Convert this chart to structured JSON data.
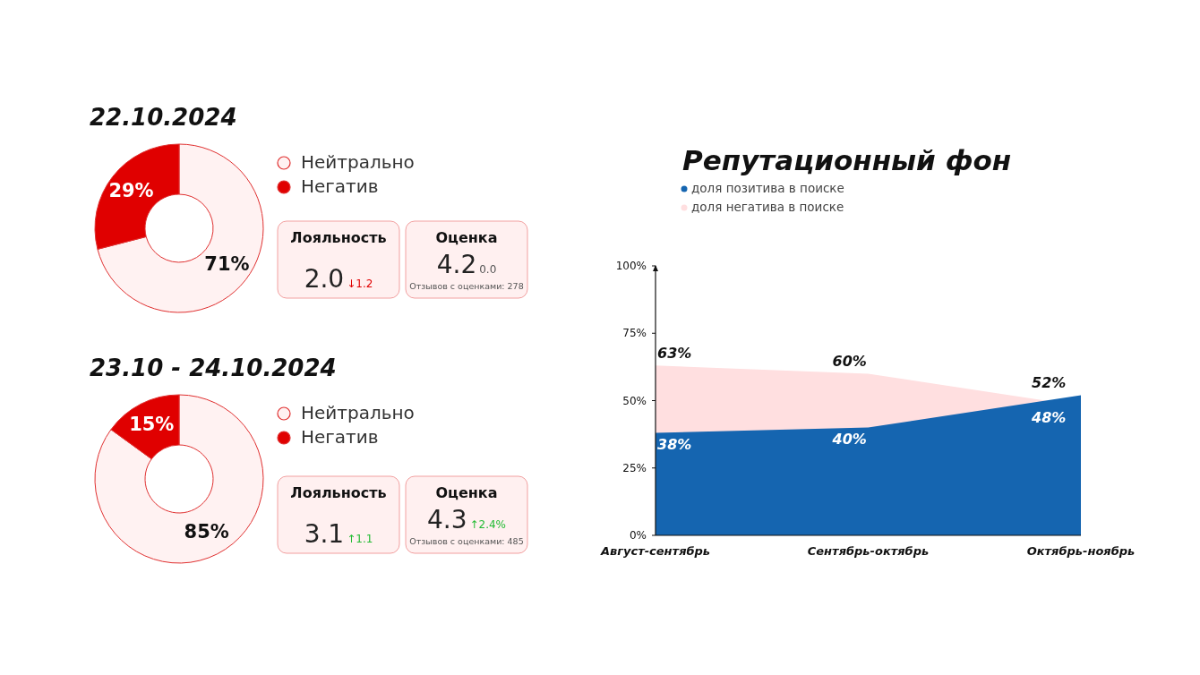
{
  "chart_data": [
    {
      "type": "donut",
      "title": "22.10.2024",
      "categories": [
        "Нейтрально",
        "Негатив"
      ],
      "values": [
        71,
        29
      ],
      "colors": [
        "#fff2f2",
        "#e00000"
      ],
      "value_labels": [
        "71%",
        "29%"
      ],
      "legend": "right"
    },
    {
      "type": "other",
      "title": "Лояльность",
      "annotations": [
        "2.0",
        "↓1.2"
      ],
      "colors": [
        "#222222",
        "#e00000"
      ]
    },
    {
      "type": "other",
      "title": "Оценка",
      "annotations": [
        "4.2",
        "0.0",
        "Отзывов с оценками: 278"
      ],
      "colors": [
        "#222222",
        "#555555",
        "#555555"
      ]
    },
    {
      "type": "donut",
      "title": "23.10 - 24.10.2024",
      "categories": [
        "Нейтрально",
        "Негатив"
      ],
      "values": [
        85,
        15
      ],
      "colors": [
        "#fff2f2",
        "#e00000"
      ],
      "value_labels": [
        "85%",
        "15%"
      ],
      "legend": "right"
    },
    {
      "type": "other",
      "title": "Лояльность",
      "annotations": [
        "3.1",
        "↑1.1"
      ],
      "colors": [
        "#222222",
        "#22bb33"
      ]
    },
    {
      "type": "other",
      "title": "Оценка",
      "annotations": [
        "4.3",
        "↑2.4%",
        "Отзывов с оценками: 485"
      ],
      "colors": [
        "#222222",
        "#22bb33",
        "#555555"
      ]
    },
    {
      "type": "area",
      "title": "Репутационный фон",
      "categories": [
        "Август-сентябрь",
        "Сентябрь-октябрь",
        "Октябрь-ноябрь"
      ],
      "ylim": [
        0,
        100
      ],
      "yticks": [
        {
          "value": 0,
          "label": "0%"
        },
        {
          "value": 25,
          "label": "25%"
        },
        {
          "value": 50,
          "label": "50%"
        },
        {
          "value": 75,
          "label": "75%"
        },
        {
          "value": 100,
          "label": "100%"
        }
      ],
      "legend": "top left",
      "series": [
        {
          "name": "доля негатива в поиске",
          "color": "#ffdfe0",
          "values": [
            63,
            60,
            48
          ],
          "value_labels": [
            "63%",
            "60%",
            "48%"
          ]
        },
        {
          "name": "доля позитива в поиске",
          "color": "#1565b0",
          "values": [
            38,
            40,
            52
          ],
          "value_labels": [
            "38%",
            "40%",
            "52%"
          ]
        }
      ]
    }
  ]
}
